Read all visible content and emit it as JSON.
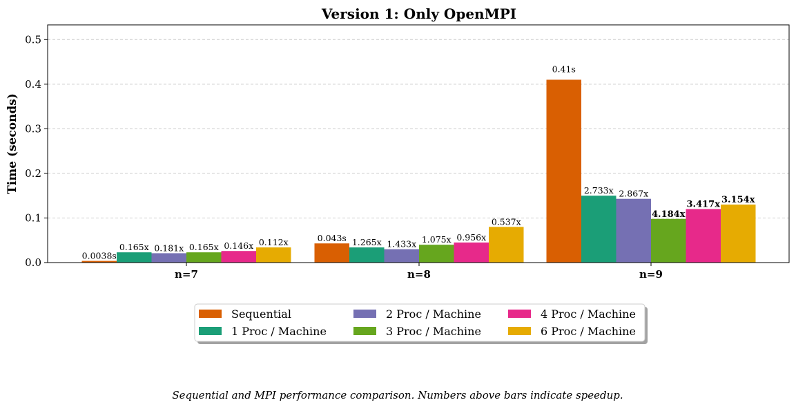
{
  "chart_data": {
    "type": "bar",
    "title": "Version 1: Only OpenMPI",
    "xlabel": "",
    "ylabel": "Time (seconds)",
    "ylim": [
      0,
      0.533
    ],
    "yticks": [
      "0.0",
      "0.1",
      "0.2",
      "0.3",
      "0.4",
      "0.5"
    ],
    "grid": "y-dashed",
    "categories": [
      "n=7",
      "n=8",
      "n=9"
    ],
    "series": [
      {
        "name": "Sequential",
        "color": "#d95f02",
        "values": [
          0.0038,
          0.043,
          0.41
        ],
        "labels": [
          "0.0038s",
          "0.043s",
          "0.41s"
        ],
        "bold": [
          false,
          false,
          false
        ]
      },
      {
        "name": "1 Proc / Machine",
        "color": "#1b9e77",
        "values": [
          0.023,
          0.034,
          0.15
        ],
        "labels": [
          "0.165x",
          "1.265x",
          "2.733x"
        ],
        "bold": [
          false,
          false,
          false
        ]
      },
      {
        "name": "2 Proc / Machine",
        "color": "#7570b3",
        "values": [
          0.021,
          0.03,
          0.143
        ],
        "labels": [
          "0.181x",
          "1.433x",
          "2.867x"
        ],
        "bold": [
          false,
          false,
          false
        ]
      },
      {
        "name": "3 Proc / Machine",
        "color": "#66a61e",
        "values": [
          0.023,
          0.04,
          0.098
        ],
        "labels": [
          "0.165x",
          "1.075x",
          "4.184x"
        ],
        "bold": [
          false,
          false,
          true
        ]
      },
      {
        "name": "4 Proc / Machine",
        "color": "#e7298a",
        "values": [
          0.026,
          0.045,
          0.12
        ],
        "labels": [
          "0.146x",
          "0.956x",
          "3.417x"
        ],
        "bold": [
          false,
          false,
          true
        ]
      },
      {
        "name": "6 Proc / Machine",
        "color": "#e6ab02",
        "values": [
          0.034,
          0.08,
          0.13
        ],
        "labels": [
          "0.112x",
          "0.537x",
          "3.154x"
        ],
        "bold": [
          false,
          false,
          true
        ]
      }
    ],
    "legend": {
      "placement": "bottom-center",
      "columns": 3
    },
    "caption": "Sequential and MPI performance comparison. Numbers above bars indicate speedup."
  }
}
